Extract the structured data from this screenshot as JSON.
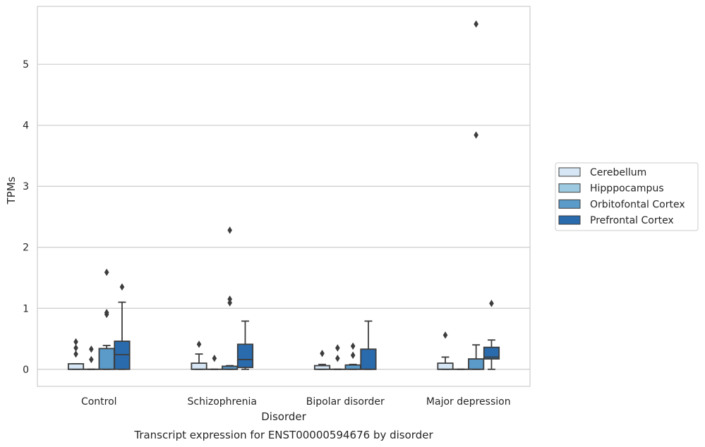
{
  "chart_data": {
    "type": "box",
    "title": "",
    "caption": "Transcript expression for ENST00000594676 by disorder",
    "xlabel": "Disorder",
    "ylabel": "TPMs",
    "ylim": [
      -0.28,
      5.95
    ],
    "yticks": [
      0,
      1,
      2,
      3,
      4,
      5
    ],
    "grid": true,
    "legend_position": "right",
    "categories": [
      "Control",
      "Schizophrenia",
      "Bipolar disorder",
      "Major depression"
    ],
    "series": [
      {
        "name": "Cerebellum",
        "color": "#d6e6f4",
        "boxes": [
          {
            "q1": 0.0,
            "median": 0.0,
            "q3": 0.09,
            "whisker_low": 0.0,
            "whisker_high": 0.09,
            "outliers": [
              0.25,
              0.35,
              0.45
            ]
          },
          {
            "q1": 0.0,
            "median": 0.0,
            "q3": 0.1,
            "whisker_low": 0.0,
            "whisker_high": 0.25,
            "outliers": [
              0.41
            ]
          },
          {
            "q1": 0.0,
            "median": 0.0,
            "q3": 0.06,
            "whisker_low": 0.0,
            "whisker_high": 0.08,
            "outliers": [
              0.26
            ]
          },
          {
            "q1": 0.0,
            "median": 0.0,
            "q3": 0.1,
            "whisker_low": 0.0,
            "whisker_high": 0.2,
            "outliers": [
              0.56
            ]
          }
        ]
      },
      {
        "name": "Hipppocampus",
        "color": "#9ecae1",
        "boxes": [
          {
            "q1": 0.0,
            "median": 0.0,
            "q3": 0.0,
            "whisker_low": 0.0,
            "whisker_high": 0.0,
            "outliers": [
              0.16,
              0.33
            ]
          },
          {
            "q1": 0.0,
            "median": 0.0,
            "q3": 0.0,
            "whisker_low": 0.0,
            "whisker_high": 0.0,
            "outliers": [
              0.18
            ]
          },
          {
            "q1": 0.0,
            "median": 0.0,
            "q3": 0.0,
            "whisker_low": 0.0,
            "whisker_high": 0.0,
            "outliers": [
              0.18,
              0.35
            ]
          },
          {
            "q1": 0.0,
            "median": 0.0,
            "q3": 0.0,
            "whisker_low": 0.0,
            "whisker_high": 0.0,
            "outliers": []
          }
        ]
      },
      {
        "name": "Orbitofontal Cortex",
        "color": "#5b9bc9",
        "boxes": [
          {
            "q1": 0.0,
            "median": 0.0,
            "q3": 0.34,
            "whisker_low": 0.0,
            "whisker_high": 0.39,
            "outliers": [
              0.9,
              0.93,
              1.59
            ]
          },
          {
            "q1": 0.0,
            "median": 0.0,
            "q3": 0.05,
            "whisker_low": 0.0,
            "whisker_high": 0.06,
            "outliers": [
              1.09,
              1.15,
              2.28
            ]
          },
          {
            "q1": 0.0,
            "median": 0.0,
            "q3": 0.07,
            "whisker_low": 0.0,
            "whisker_high": 0.08,
            "outliers": [
              0.23,
              0.38
            ]
          },
          {
            "q1": 0.0,
            "median": 0.0,
            "q3": 0.17,
            "whisker_low": 0.0,
            "whisker_high": 0.4,
            "outliers": [
              3.84,
              5.66
            ]
          }
        ]
      },
      {
        "name": "Prefrontal Cortex",
        "color": "#2a6bad",
        "boxes": [
          {
            "q1": 0.0,
            "median": 0.24,
            "q3": 0.46,
            "whisker_low": 0.0,
            "whisker_high": 1.1,
            "outliers": [
              1.35
            ]
          },
          {
            "q1": 0.03,
            "median": 0.16,
            "q3": 0.41,
            "whisker_low": 0.0,
            "whisker_high": 0.79,
            "outliers": []
          },
          {
            "q1": 0.0,
            "median": 0.0,
            "q3": 0.33,
            "whisker_low": 0.0,
            "whisker_high": 0.79,
            "outliers": []
          },
          {
            "q1": 0.17,
            "median": 0.2,
            "q3": 0.36,
            "whisker_low": 0.0,
            "whisker_high": 0.48,
            "outliers": [
              1.08
            ]
          }
        ]
      }
    ]
  }
}
